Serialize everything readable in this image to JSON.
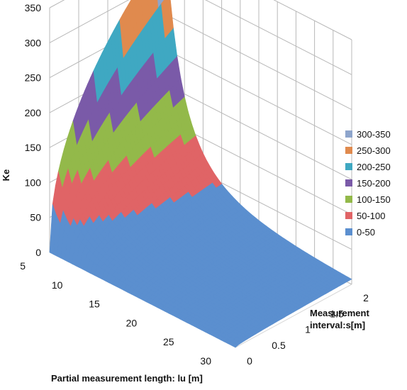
{
  "chart_data": {
    "type": "surface",
    "z_axis": {
      "label": "Ke",
      "ticks": [
        "0",
        "50",
        "100",
        "150",
        "200",
        "250",
        "300",
        "350"
      ],
      "range": [
        0,
        350
      ]
    },
    "x_axis": {
      "label": "Partial measurement length: lu [m]",
      "ticks": [
        "5",
        "10",
        "15",
        "20",
        "25",
        "30"
      ],
      "range": [
        5,
        30
      ]
    },
    "y_axis": {
      "label_line1": "Measurement",
      "label_line2": "interval:s[m]",
      "ticks": [
        "0",
        "0.5",
        "1",
        "1.5",
        "2"
      ],
      "range": [
        0,
        2
      ]
    },
    "bands": [
      {
        "name": "300-350",
        "min": 300,
        "max": 350,
        "color": "#8ea5cc"
      },
      {
        "name": "250-300",
        "min": 250,
        "max": 300,
        "color": "#e08a4e"
      },
      {
        "name": "200-250",
        "min": 200,
        "max": 250,
        "color": "#3fa8c2"
      },
      {
        "name": "150-200",
        "min": 150,
        "max": 200,
        "color": "#7a5aa8"
      },
      {
        "name": "100-150",
        "min": 100,
        "max": 150,
        "color": "#93b94a"
      },
      {
        "name": "50-100",
        "min": 50,
        "max": 100,
        "color": "#e06466"
      },
      {
        "name": "0-50",
        "min": 0,
        "max": 50,
        "color": "#5b8fcf"
      }
    ],
    "grid": true,
    "legend_position": "right"
  }
}
